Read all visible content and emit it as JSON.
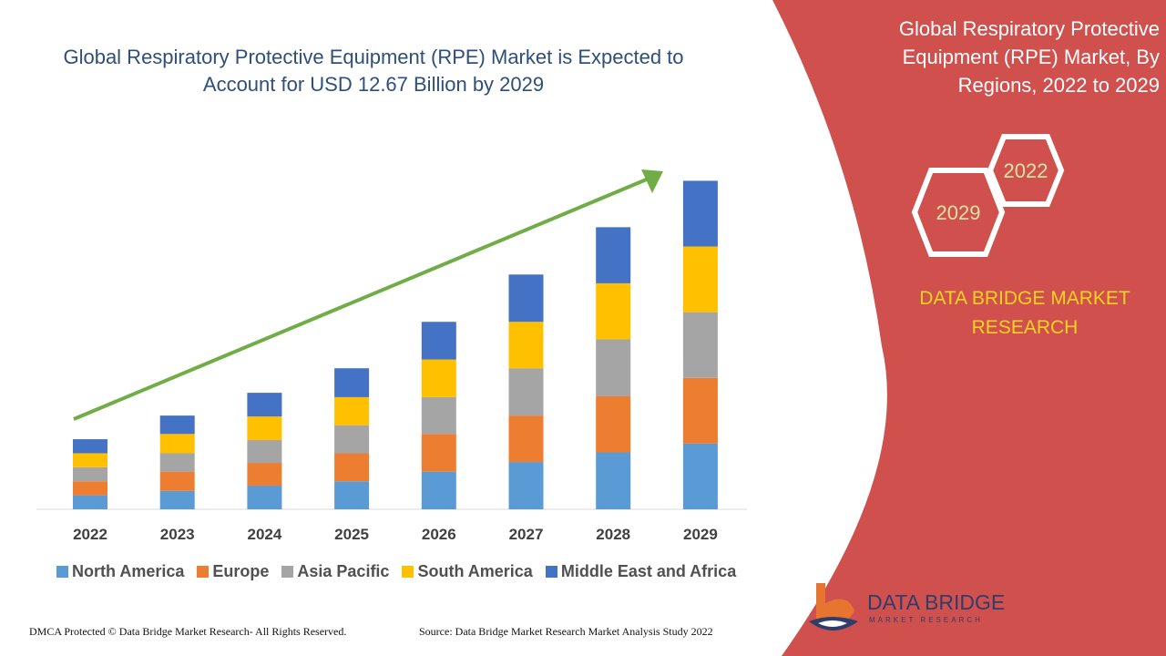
{
  "title": "Global Respiratory Protective Equipment (RPE) Market is Expected to Account for USD 12.67 Billion by 2029",
  "side_panel": {
    "title": "Global Respiratory Protective Equipment (RPE) Market, By Regions, 2022 to 2029",
    "hex_start": "2022",
    "hex_end": "2029",
    "brand": "DATA BRIDGE MARKET RESEARCH",
    "panel_color": "#d0504e"
  },
  "chart_data": {
    "type": "bar",
    "stacked": true,
    "categories": [
      "2022",
      "2023",
      "2024",
      "2025",
      "2026",
      "2027",
      "2028",
      "2029"
    ],
    "series": [
      {
        "name": "North America",
        "color": "#5b9bd5",
        "values": [
          16,
          21,
          27,
          32,
          43,
          54,
          65,
          75
        ]
      },
      {
        "name": "Europe",
        "color": "#ed7d31",
        "values": [
          16,
          22,
          26,
          32,
          43,
          53,
          64,
          75
        ]
      },
      {
        "name": "Asia Pacific",
        "color": "#a5a5a5",
        "values": [
          16,
          21,
          26,
          32,
          42,
          54,
          65,
          75
        ]
      },
      {
        "name": "South America",
        "color": "#ffc000",
        "values": [
          16,
          22,
          27,
          32,
          43,
          53,
          64,
          75
        ]
      },
      {
        "name": "Middle East and Africa",
        "color": "#4472c4",
        "values": [
          16,
          21,
          27,
          33,
          43,
          54,
          64,
          75
        ]
      }
    ],
    "ylim": [
      0,
      390
    ],
    "grid": false,
    "legend_position": "bottom",
    "trend_arrow_color": "#70ad47"
  },
  "footer": {
    "left": "DMCA Protected © Data Bridge Market Research- All Rights Reserved.",
    "right": "Source: Data Bridge Market Research Market Analysis Study 2022"
  },
  "logo": {
    "name": "DATA BRIDGE",
    "tagline": "MARKET RESEARCH"
  }
}
